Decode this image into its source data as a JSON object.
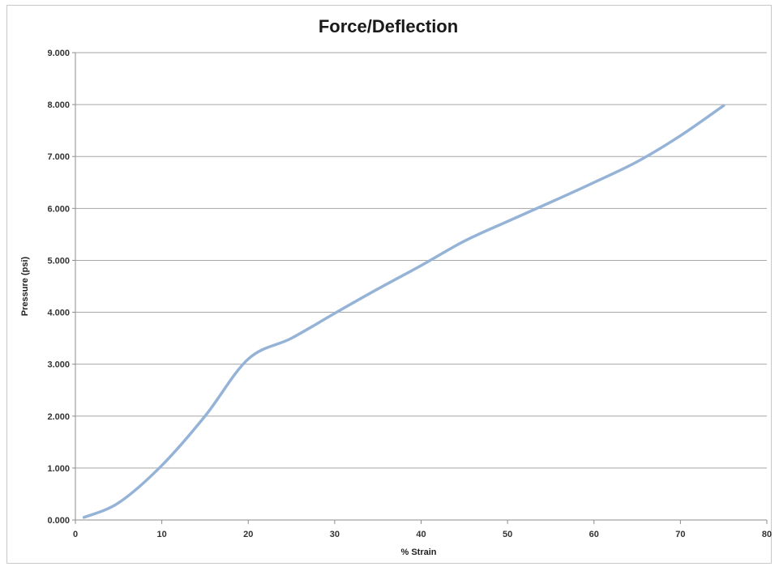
{
  "chart_data": {
    "type": "line",
    "title": "Force/Deflection",
    "xlabel": "% Strain",
    "ylabel": "Pressure (psi)",
    "xlim": [
      0,
      80
    ],
    "ylim": [
      0,
      9
    ],
    "x_ticks": [
      0,
      10,
      20,
      30,
      40,
      50,
      60,
      70,
      80
    ],
    "x_tick_labels": [
      "0",
      "10",
      "20",
      "30",
      "40",
      "50",
      "60",
      "70",
      "80"
    ],
    "y_ticks": [
      0,
      1,
      2,
      3,
      4,
      5,
      6,
      7,
      8,
      9
    ],
    "y_tick_labels": [
      "0.000",
      "1.000",
      "2.000",
      "3.000",
      "4.000",
      "5.000",
      "6.000",
      "7.000",
      "8.000",
      "9.000"
    ],
    "grid": "horizontal",
    "legend": "none",
    "series": [
      {
        "color": "#95b3d7",
        "points": [
          [
            1,
            0.05
          ],
          [
            5,
            0.33
          ],
          [
            10,
            1.05
          ],
          [
            15,
            2.0
          ],
          [
            20,
            3.1
          ],
          [
            25,
            3.5
          ],
          [
            30,
            3.98
          ],
          [
            35,
            4.45
          ],
          [
            40,
            4.9
          ],
          [
            45,
            5.37
          ],
          [
            50,
            5.75
          ],
          [
            55,
            6.12
          ],
          [
            60,
            6.5
          ],
          [
            65,
            6.9
          ],
          [
            70,
            7.4
          ],
          [
            75,
            7.98
          ]
        ]
      }
    ]
  },
  "colors": {
    "grid": "#a6a6a6",
    "axis": "#8c8c8c",
    "line": "#95b3d7"
  }
}
